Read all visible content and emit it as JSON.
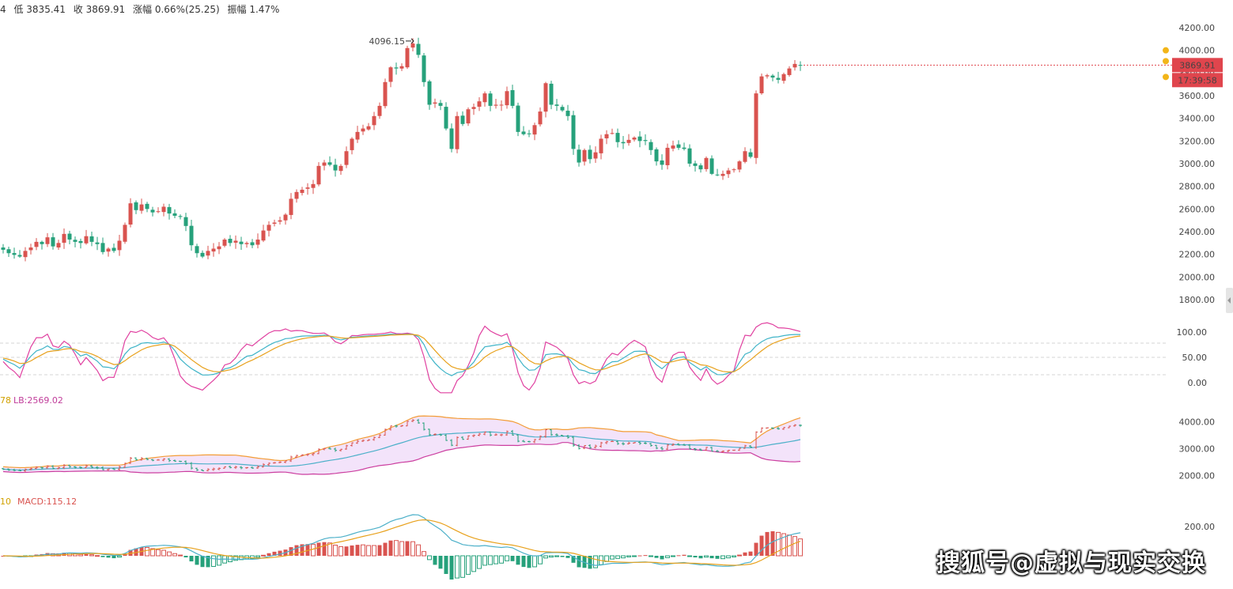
{
  "colors": {
    "up": "#d9534f",
    "down": "#26a17b",
    "k_line": "#e040a0",
    "d_line": "#3fb4c8",
    "j_line": "#e8a11c",
    "boll_fill": "#f3e3fa",
    "boll_ub": "#f39c35",
    "boll_lb": "#cc3fa0",
    "boll_mb": "#4cb0c9",
    "grid": "#d6d6d6",
    "price_tag": "#e0454d",
    "alert": "#f2b519"
  },
  "topbar": {
    "items": [
      "4",
      "低 3835.41",
      "收 3869.91",
      "涨幅 0.66%(25.25)",
      "振幅 1.47%"
    ]
  },
  "price_panel": {
    "ticks": [
      "4200.00",
      "4000.00",
      "3800.00",
      "3600.00",
      "3400.00",
      "3200.00",
      "3000.00",
      "2800.00",
      "2600.00",
      "2400.00",
      "2200.00",
      "2000.00",
      "1800.00"
    ],
    "high_label": "4096.15",
    "last_price": "3869.91",
    "countdown": "17:39:58"
  },
  "kdj_panel": {
    "ticks": [
      "100.00",
      "50.00",
      "0.00"
    ]
  },
  "boll_panel": {
    "label_left": "78",
    "label_lb": "LB:2569.02",
    "ticks": [
      "4000.00",
      "3000.00",
      "2000.00"
    ]
  },
  "macd_panel": {
    "label_left": "10",
    "label_macd": "MACD:115.12",
    "ticks": [
      "200.00"
    ]
  },
  "watermark": "搜狐号@虚拟与现实交换",
  "chart_data": {
    "type": "candlestick",
    "x": "daily candles (≈150 bars)",
    "price_ylim": [
      1700,
      4250
    ],
    "closes": [
      2240,
      2210,
      2195,
      2180,
      2230,
      2260,
      2310,
      2290,
      2350,
      2270,
      2300,
      2380,
      2330,
      2310,
      2300,
      2360,
      2310,
      2290,
      2220,
      2250,
      2230,
      2320,
      2460,
      2650,
      2590,
      2640,
      2600,
      2570,
      2580,
      2620,
      2560,
      2540,
      2530,
      2450,
      2280,
      2210,
      2180,
      2230,
      2250,
      2270,
      2330,
      2300,
      2320,
      2290,
      2300,
      2280,
      2330,
      2410,
      2460,
      2480,
      2500,
      2550,
      2690,
      2750,
      2770,
      2790,
      2820,
      2980,
      3010,
      2990,
      2940,
      2980,
      3110,
      3220,
      3280,
      3310,
      3330,
      3420,
      3510,
      3720,
      3850,
      3840,
      3860,
      4020,
      4060,
      3960,
      3720,
      3520,
      3540,
      3510,
      3310,
      3130,
      3420,
      3350,
      3480,
      3500,
      3550,
      3620,
      3510,
      3520,
      3520,
      3640,
      3510,
      3280,
      3260,
      3260,
      3340,
      3460,
      3710,
      3520,
      3510,
      3470,
      3420,
      3130,
      3010,
      3120,
      3040,
      3100,
      3220,
      3260,
      3270,
      3190,
      3180,
      3210,
      3230,
      3200,
      3200,
      3120,
      3020,
      2990,
      3140,
      3160,
      3140,
      3130,
      3000,
      2980,
      2950,
      3050,
      2910,
      2900,
      2910,
      2940,
      2950,
      3020,
      3110,
      3060,
      3620,
      3770,
      3780,
      3760,
      3740,
      3790,
      3840,
      3880,
      3869.91
    ],
    "high": 4096.15,
    "last": 3869.91,
    "kdj_ylim": [
      -20,
      120
    ],
    "boll": {
      "lb_last": 2569.02,
      "ylim": [
        1900,
        4400
      ]
    },
    "macd": {
      "last": 115.12
    }
  }
}
